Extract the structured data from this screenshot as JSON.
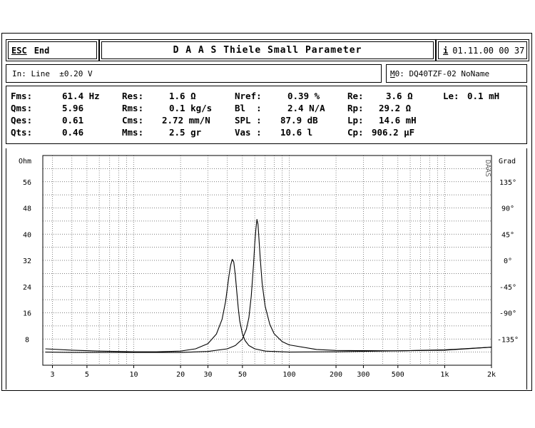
{
  "header": {
    "esc_label": "ESC",
    "end_label": "End",
    "title": "D A A S  Thiele Small Parameter",
    "info_label": "i",
    "datetime": "01.11.00 00 37"
  },
  "input_bar": {
    "input_text": "In: Line  ±0.20 V",
    "model_label": "M",
    "model_text": "0: DQ40TZF-02 NoName"
  },
  "params": {
    "col1": [
      {
        "label": "Fms:",
        "value": "61.4 Hz"
      },
      {
        "label": "Qms:",
        "value": "5.96"
      },
      {
        "label": "Qes:",
        "value": "0.61"
      },
      {
        "label": "Qts:",
        "value": "0.46"
      }
    ],
    "col2": [
      {
        "label": "Res:",
        "value": "1.6 Ω"
      },
      {
        "label": "Rms:",
        "value": "0.1 kg/s"
      },
      {
        "label": "Cms:",
        "value": "2.72 mm/N"
      },
      {
        "label": "Mms:",
        "value": "2.5 gr"
      }
    ],
    "col3": [
      {
        "label": "Nref:",
        "value": "0.39 %"
      },
      {
        "label": "Bl  :",
        "value": "2.4 N/A"
      },
      {
        "label": "SPL :",
        "value": "87.9 dB"
      },
      {
        "label": "Vas :",
        "value": "10.6 l"
      }
    ],
    "col4": [
      {
        "label": "Re:",
        "value": "3.6 Ω"
      },
      {
        "label": "Rp:",
        "value": "29.2 Ω"
      },
      {
        "label": "Lp:",
        "value": "14.6 mH"
      },
      {
        "label": "Cp:",
        "value": "906.2 µF"
      }
    ],
    "col5": [
      {
        "label": "Le:",
        "value": "0.1 mH"
      }
    ]
  },
  "plot": {
    "left_axis_title": "Ohm",
    "right_axis_title": "Grad",
    "side_mark": "DAAS",
    "colors": {
      "line": "#000000",
      "grid": "#555555",
      "background": "#ffffff"
    }
  },
  "chart_data": {
    "type": "line",
    "title": "",
    "xlabel": "",
    "ylabel": "Ohm",
    "y2label": "Grad",
    "xscale": "log",
    "xlim": [
      2.6,
      2000
    ],
    "ylim": [
      0,
      64
    ],
    "y2lim": [
      -180,
      180
    ],
    "x_tick_labels": [
      {
        "value": 3,
        "label": "3"
      },
      {
        "value": 5,
        "label": "5"
      },
      {
        "value": 10,
        "label": "10"
      },
      {
        "value": 20,
        "label": "20"
      },
      {
        "value": 30,
        "label": "30"
      },
      {
        "value": 50,
        "label": "50"
      },
      {
        "value": 100,
        "label": "100"
      },
      {
        "value": 200,
        "label": "200"
      },
      {
        "value": 300,
        "label": "300"
      },
      {
        "value": 500,
        "label": "500"
      },
      {
        "value": 1000,
        "label": "1k"
      },
      {
        "value": 2000,
        "label": "2k"
      }
    ],
    "y_tick_labels": [
      {
        "value": 8,
        "label": "8"
      },
      {
        "value": 16,
        "label": "16"
      },
      {
        "value": 24,
        "label": "24"
      },
      {
        "value": 32,
        "label": "32"
      },
      {
        "value": 40,
        "label": "40"
      },
      {
        "value": 48,
        "label": "48"
      },
      {
        "value": 56,
        "label": "56"
      }
    ],
    "y2_tick_labels": [
      {
        "value": 135,
        "label": "135°"
      },
      {
        "value": 90,
        "label": "90°"
      },
      {
        "value": 45,
        "label": "45°"
      },
      {
        "value": 0,
        "label": "0°"
      },
      {
        "value": -45,
        "label": "-45°"
      },
      {
        "value": -90,
        "label": "-90°"
      },
      {
        "value": -135,
        "label": "-135°"
      }
    ],
    "series": [
      {
        "name": "impedance-added-mass",
        "x": [
          2.7,
          4,
          6,
          8,
          10,
          14,
          20,
          25,
          30,
          34,
          37,
          39,
          40,
          41,
          42,
          43,
          44,
          45,
          46,
          47,
          48,
          50,
          52,
          55,
          60,
          70,
          100,
          200,
          500,
          1000,
          2000
        ],
        "y": [
          5.0,
          4.6,
          4.3,
          4.2,
          4.1,
          4.1,
          4.3,
          5.0,
          6.6,
          9.5,
          14.0,
          19.5,
          23.5,
          27.5,
          30.5,
          32.3,
          31.5,
          27.5,
          22.5,
          17.5,
          13.6,
          9.6,
          7.5,
          6.0,
          5.0,
          4.3,
          4.0,
          4.1,
          4.4,
          4.6,
          5.5
        ]
      },
      {
        "name": "impedance-free-air",
        "x": [
          2.7,
          4,
          6,
          10,
          20,
          30,
          40,
          45,
          50,
          53,
          55,
          57,
          59,
          60,
          61,
          62,
          63,
          64,
          65,
          67,
          70,
          75,
          80,
          90,
          100,
          150,
          200,
          500,
          1000,
          2000
        ],
        "y": [
          4.0,
          3.9,
          3.9,
          3.9,
          3.9,
          4.2,
          5.0,
          6.0,
          8.0,
          11.0,
          14.5,
          21.0,
          31.0,
          37.0,
          41.5,
          44.5,
          43.0,
          38.0,
          33.0,
          25.0,
          18.0,
          12.5,
          9.6,
          7.2,
          6.2,
          4.8,
          4.5,
          4.4,
          4.7,
          5.5
        ]
      }
    ]
  }
}
